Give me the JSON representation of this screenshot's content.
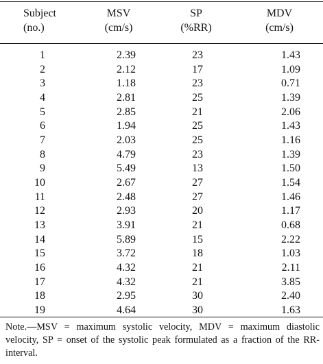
{
  "table": {
    "headers": [
      {
        "line1": "Subject",
        "line2": "(no.)"
      },
      {
        "line1": "MSV",
        "line2": "(cm/s)"
      },
      {
        "line1": "SP",
        "line2": "(%RR)"
      },
      {
        "line1": "MDV",
        "line2": "(cm/s)"
      }
    ],
    "rows": [
      [
        "1",
        "2.39",
        "23",
        "1.43"
      ],
      [
        "2",
        "2.12",
        "17",
        "1.09"
      ],
      [
        "3",
        "1.18",
        "23",
        "0.71"
      ],
      [
        "4",
        "2.81",
        "25",
        "1.39"
      ],
      [
        "5",
        "2.85",
        "21",
        "2.06"
      ],
      [
        "6",
        "1.94",
        "25",
        "1.43"
      ],
      [
        "7",
        "2.03",
        "25",
        "1.16"
      ],
      [
        "8",
        "4.79",
        "23",
        "1.39"
      ],
      [
        "9",
        "5.49",
        "13",
        "1.50"
      ],
      [
        "10",
        "2.67",
        "27",
        "1.54"
      ],
      [
        "11",
        "2.48",
        "27",
        "1.46"
      ],
      [
        "12",
        "2.93",
        "20",
        "1.17"
      ],
      [
        "13",
        "3.91",
        "21",
        "0.68"
      ],
      [
        "14",
        "5.89",
        "15",
        "2.22"
      ],
      [
        "15",
        "3.72",
        "18",
        "1.03"
      ],
      [
        "16",
        "4.32",
        "21",
        "2.11"
      ],
      [
        "17",
        "4.32",
        "21",
        "3.85"
      ],
      [
        "18",
        "2.95",
        "30",
        "2.40"
      ],
      [
        "19",
        "4.64",
        "30",
        "1.63"
      ]
    ]
  },
  "note": "Note.—MSV = maximum systolic velocity, MDV = maximum diastolic velocity, SP = onset of the systolic peak formulated as a fraction of the RR-interval."
}
